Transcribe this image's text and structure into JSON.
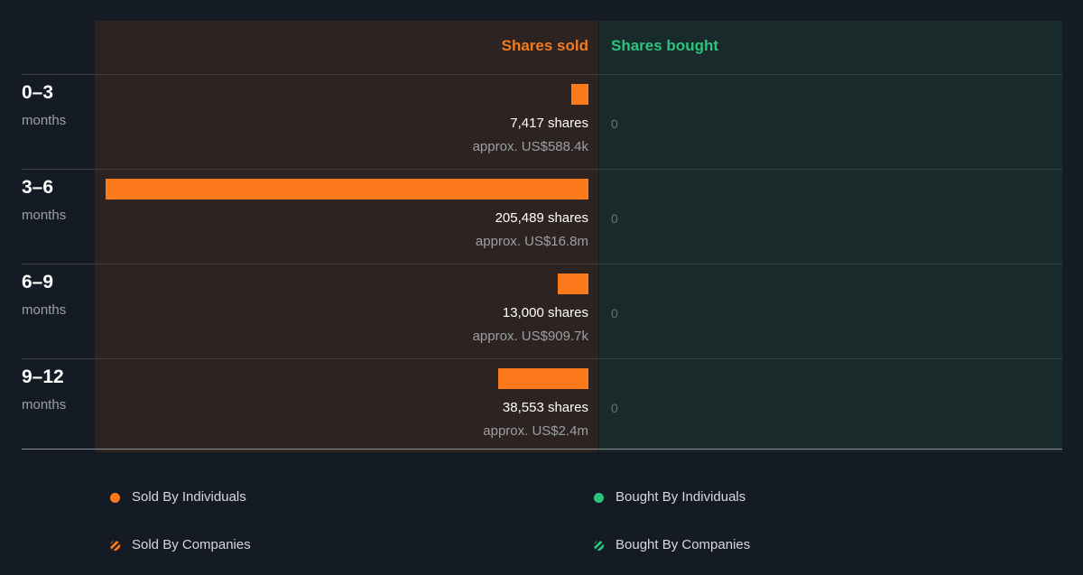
{
  "headers": {
    "sold": "Shares sold",
    "bought": "Shares bought"
  },
  "colors": {
    "background": "#151b24",
    "sold_panel": "#2d2320",
    "bought_panel": "#192a2b",
    "sold": "#fc7a1b",
    "bought": "#2bc47d"
  },
  "chart_data": {
    "type": "bar",
    "orientation": "horizontal",
    "categories": [
      "0–3 months",
      "3–6 months",
      "6–9 months",
      "9–12 months"
    ],
    "series": [
      {
        "name": "Shares sold",
        "values": [
          7417,
          205489,
          13000,
          38553
        ]
      },
      {
        "name": "Shares bought",
        "values": [
          0,
          0,
          0,
          0
        ]
      }
    ],
    "legend_position": "bottom"
  },
  "rows": [
    {
      "period": "0–3",
      "unit": "months",
      "sold_shares": 7417,
      "shares_text": "7,417 shares",
      "value_text": "approx. US$588.4k",
      "bought_text": "0"
    },
    {
      "period": "3–6",
      "unit": "months",
      "sold_shares": 205489,
      "shares_text": "205,489 shares",
      "value_text": "approx. US$16.8m",
      "bought_text": "0"
    },
    {
      "period": "6–9",
      "unit": "months",
      "sold_shares": 13000,
      "shares_text": "13,000 shares",
      "value_text": "approx. US$909.7k",
      "bought_text": "0"
    },
    {
      "period": "9–12",
      "unit": "months",
      "sold_shares": 38553,
      "shares_text": "38,553 shares",
      "value_text": "approx. US$2.4m",
      "bought_text": "0"
    }
  ],
  "legend": [
    {
      "label": "Sold By Individuals",
      "icon": "dot",
      "color": "#fc7a1b"
    },
    {
      "label": "Bought By Individuals",
      "icon": "dot",
      "color": "#2bc47d"
    },
    {
      "label": "Sold By Companies",
      "icon": "hatched-dot",
      "color": "#fc7a1b"
    },
    {
      "label": "Bought By Companies",
      "icon": "hatched-dot",
      "color": "#2bc47d"
    }
  ]
}
